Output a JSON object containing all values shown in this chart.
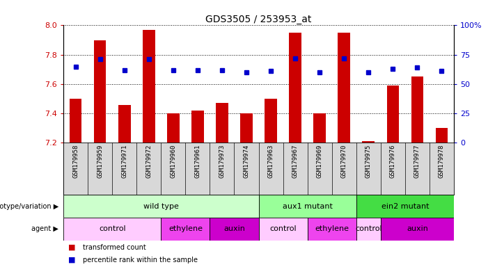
{
  "title": "GDS3505 / 253953_at",
  "samples": [
    "GSM179958",
    "GSM179959",
    "GSM179971",
    "GSM179972",
    "GSM179960",
    "GSM179961",
    "GSM179973",
    "GSM179974",
    "GSM179963",
    "GSM179967",
    "GSM179969",
    "GSM179970",
    "GSM179975",
    "GSM179976",
    "GSM179977",
    "GSM179978"
  ],
  "transformed_count": [
    7.5,
    7.9,
    7.46,
    7.97,
    7.4,
    7.42,
    7.47,
    7.4,
    7.5,
    7.95,
    7.4,
    7.95,
    7.21,
    7.59,
    7.65,
    7.3
  ],
  "percentile_rank": [
    65,
    71,
    62,
    71,
    62,
    62,
    62,
    60,
    61,
    72,
    60,
    72,
    60,
    63,
    64,
    61
  ],
  "ylim_left": [
    7.2,
    8.0
  ],
  "ylim_right": [
    0,
    100
  ],
  "yticks_left": [
    7.2,
    7.4,
    7.6,
    7.8,
    8.0
  ],
  "yticks_right": [
    0,
    25,
    50,
    75,
    100
  ],
  "bar_color": "#cc0000",
  "dot_color": "#0000cc",
  "genotype_groups": [
    {
      "label": "wild type",
      "start": 0,
      "end": 7,
      "color": "#ccffcc"
    },
    {
      "label": "aux1 mutant",
      "start": 8,
      "end": 11,
      "color": "#99ff99"
    },
    {
      "label": "ein2 mutant",
      "start": 12,
      "end": 15,
      "color": "#44dd44"
    }
  ],
  "agent_groups": [
    {
      "label": "control",
      "start": 0,
      "end": 3,
      "color": "#ffccff"
    },
    {
      "label": "ethylene",
      "start": 4,
      "end": 5,
      "color": "#ee44ee"
    },
    {
      "label": "auxin",
      "start": 6,
      "end": 7,
      "color": "#cc00cc"
    },
    {
      "label": "control",
      "start": 8,
      "end": 9,
      "color": "#ffccff"
    },
    {
      "label": "ethylene",
      "start": 10,
      "end": 11,
      "color": "#ee44ee"
    },
    {
      "label": "control",
      "start": 12,
      "end": 12,
      "color": "#ffccff"
    },
    {
      "label": "auxin",
      "start": 13,
      "end": 15,
      "color": "#cc00cc"
    }
  ],
  "legend_items": [
    {
      "label": "transformed count",
      "color": "#cc0000"
    },
    {
      "label": "percentile rank within the sample",
      "color": "#0000cc"
    }
  ],
  "bar_width": 0.5,
  "label_fontsize": 7,
  "tick_fontsize": 8,
  "sample_fontsize": 6.5
}
